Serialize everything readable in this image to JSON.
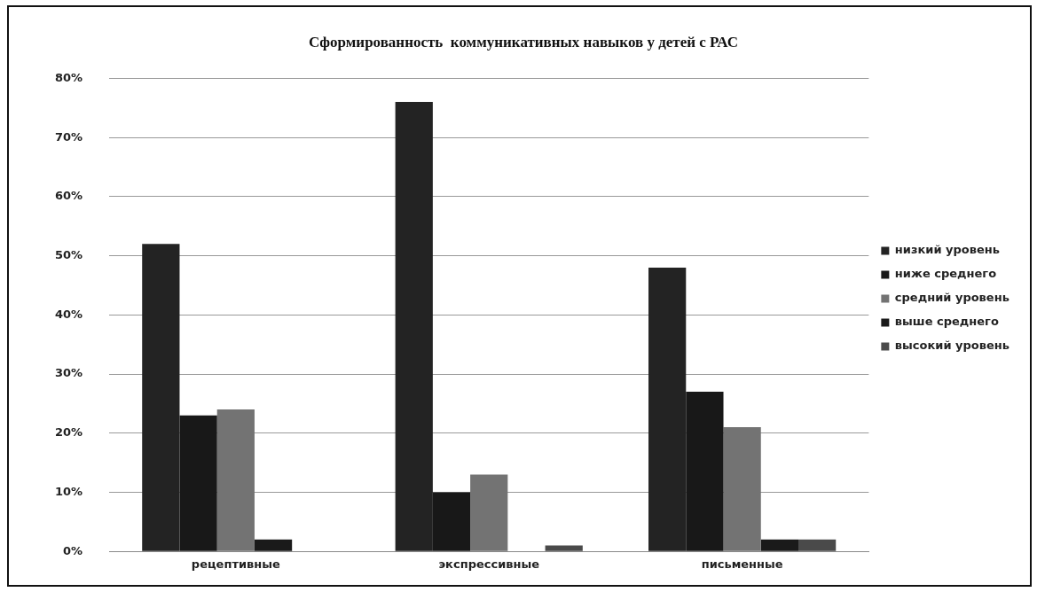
{
  "chart_data": {
    "type": "bar",
    "title": "Сформированность  коммуникативных навыков у детей с РАС",
    "categories": [
      "рецептивные",
      "экспрессивные",
      "письменные"
    ],
    "series": [
      {
        "name": "низкий уровень",
        "color": "#232323",
        "values": [
          52,
          76,
          48
        ]
      },
      {
        "name": "ниже среднего",
        "color": "#181818",
        "values": [
          23,
          10,
          27
        ]
      },
      {
        "name": "средний уровень",
        "color": "#737373",
        "values": [
          24,
          13,
          21
        ]
      },
      {
        "name": "выше среднего",
        "color": "#1a1a1a",
        "values": [
          2,
          0,
          2
        ]
      },
      {
        "name": "высокий уровень",
        "color": "#4a4a4a",
        "values": [
          0,
          1,
          2
        ]
      }
    ],
    "ylim": [
      0,
      80
    ],
    "yticks": [
      {
        "value": 0,
        "label": "0%"
      },
      {
        "value": 10,
        "label": "10%"
      },
      {
        "value": 20,
        "label": "20%"
      },
      {
        "value": 30,
        "label": "30%"
      },
      {
        "value": 40,
        "label": "40%"
      },
      {
        "value": 50,
        "label": "50%"
      },
      {
        "value": 60,
        "label": "60%"
      },
      {
        "value": 70,
        "label": "70%"
      },
      {
        "value": 80,
        "label": "80%"
      }
    ],
    "grid": "y",
    "legend": "right"
  }
}
